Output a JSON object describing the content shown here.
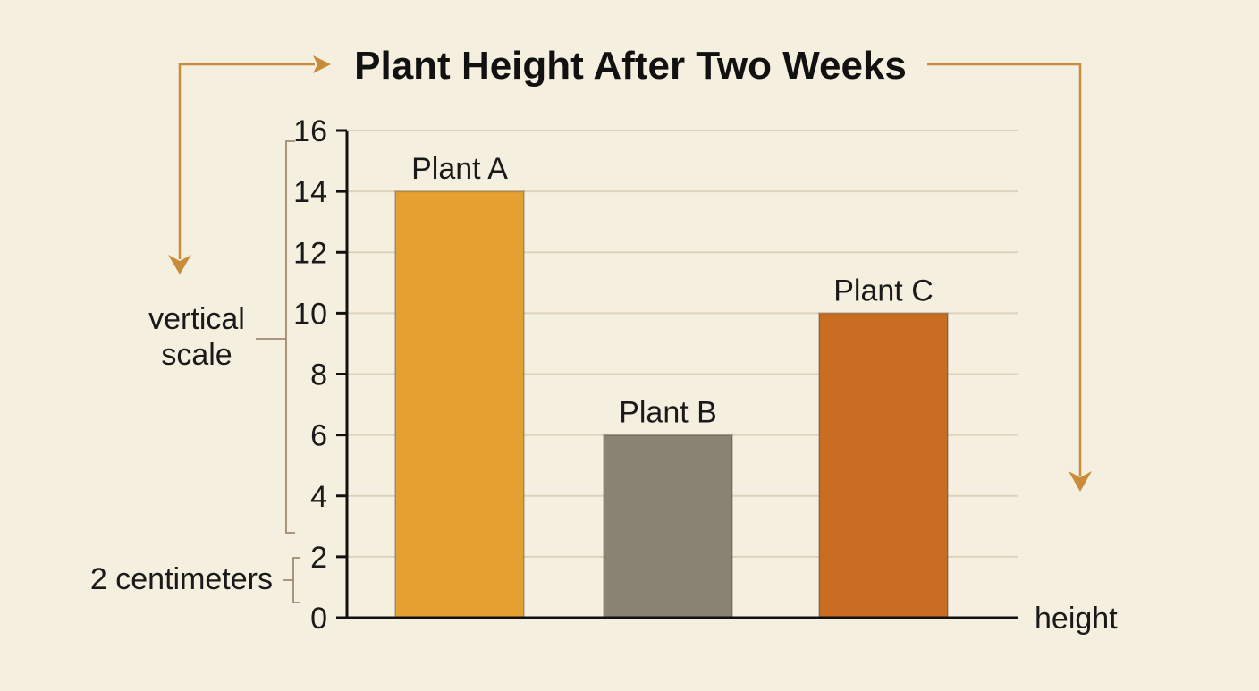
{
  "chart_data": {
    "type": "bar",
    "title": "Plant Height After Two Weeks",
    "categories": [
      "Plant A",
      "Plant B",
      "Plant C"
    ],
    "values": [
      14,
      6,
      10
    ],
    "colors": [
      "#e4a030",
      "#8a8272",
      "#c86d22"
    ],
    "xlabel": "height",
    "ylabel": "",
    "ylim": [
      0,
      16
    ],
    "yticks": [
      "0",
      "2",
      "4",
      "6",
      "8",
      "10",
      "12",
      "14",
      "16"
    ],
    "grid": true,
    "annotations": {
      "scale_note": [
        "vertical",
        "scale"
      ],
      "unit_note": "2 centimeters"
    }
  }
}
